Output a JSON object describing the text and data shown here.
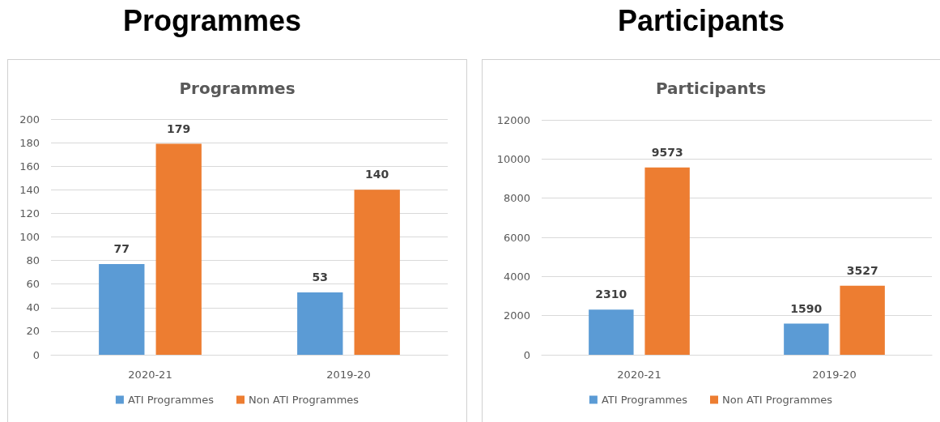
{
  "chart_data": [
    {
      "type": "bar",
      "title": "Programmes",
      "subtitle": "Programmes",
      "categories": [
        "2020-21",
        "2019-20"
      ],
      "series": [
        {
          "name": "ATI Programmes",
          "color": "#5b9bd5",
          "values": [
            77,
            53
          ]
        },
        {
          "name": "Non ATI Programmes",
          "color": "#ed7d31",
          "values": [
            179,
            140
          ]
        }
      ],
      "ylim": [
        0,
        200
      ],
      "yticks": [
        0,
        20,
        40,
        60,
        80,
        100,
        120,
        140,
        160,
        180,
        200
      ],
      "grid": "y",
      "legend": "bottom",
      "data_labels": true
    },
    {
      "type": "bar",
      "title": "Participants",
      "subtitle": "Participants",
      "categories": [
        "2020-21",
        "2019-20"
      ],
      "series": [
        {
          "name": "ATI Programmes",
          "color": "#5b9bd5",
          "values": [
            2310,
            1590
          ]
        },
        {
          "name": "Non ATI Programmes",
          "color": "#ed7d31",
          "values": [
            9573,
            3527
          ]
        }
      ],
      "ylim": [
        0,
        12000
      ],
      "yticks": [
        0,
        2000,
        4000,
        6000,
        8000,
        10000,
        12000
      ],
      "grid": "y",
      "legend": "bottom",
      "data_labels": true
    }
  ]
}
